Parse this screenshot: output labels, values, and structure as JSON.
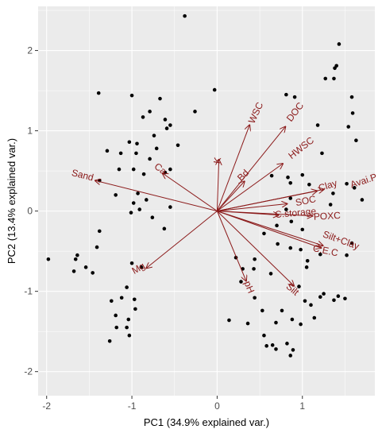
{
  "colors": {
    "panel_bg": "#ebebeb",
    "grid": "#ffffff",
    "point": "#000000",
    "vector": "#8b1a1a",
    "tick_text": "#4d4d4d",
    "axis_title": "#000000"
  },
  "chart_data": {
    "type": "scatter",
    "subtype": "pca-biplot",
    "xlabel": "PC1 (34.9% explained var.)",
    "ylabel": "PC2 (13.4% explained var.)",
    "xlim": [
      -2.1,
      1.85
    ],
    "ylim": [
      -2.3,
      2.55
    ],
    "xticks": [
      -2,
      -1,
      0,
      1
    ],
    "yticks": [
      -2,
      -1,
      0,
      1,
      2
    ],
    "grid": true,
    "points": [
      [
        -0.38,
        2.43
      ],
      [
        1.43,
        2.08
      ],
      [
        1.4,
        1.81
      ],
      [
        1.38,
        1.78
      ],
      [
        1.37,
        1.65
      ],
      [
        1.27,
        1.65
      ],
      [
        1.58,
        1.42
      ],
      [
        0.91,
        1.42
      ],
      [
        1.59,
        1.22
      ],
      [
        -0.03,
        1.51
      ],
      [
        -1.39,
        1.47
      ],
      [
        -1.0,
        1.44
      ],
      [
        -0.67,
        1.4
      ],
      [
        -0.79,
        1.24
      ],
      [
        -0.87,
        1.17
      ],
      [
        -0.61,
        1.14
      ],
      [
        -0.55,
        1.07
      ],
      [
        -0.59,
        1.03
      ],
      [
        -0.26,
        1.24
      ],
      [
        -0.74,
        0.94
      ],
      [
        -0.46,
        0.82
      ],
      [
        -1.03,
        0.86
      ],
      [
        -0.94,
        0.84
      ],
      [
        -1.13,
        0.72
      ],
      [
        -1.29,
        0.75
      ],
      [
        -0.71,
        0.78
      ],
      [
        -0.95,
        0.72
      ],
      [
        -0.79,
        0.65
      ],
      [
        -0.98,
        0.52
      ],
      [
        -0.55,
        0.52
      ],
      [
        -0.61,
        0.48
      ],
      [
        -0.86,
        0.46
      ],
      [
        -1.15,
        0.52
      ],
      [
        -1.38,
        0.38
      ],
      [
        -0.93,
        0.22
      ],
      [
        -1.19,
        0.2
      ],
      [
        -0.83,
        0.14
      ],
      [
        -0.98,
        0.1
      ],
      [
        -0.91,
        0.02
      ],
      [
        -1.01,
        -0.02
      ],
      [
        -0.55,
        0.05
      ],
      [
        -0.76,
        -0.08
      ],
      [
        -0.62,
        -0.22
      ],
      [
        -1.38,
        -0.25
      ],
      [
        -1.41,
        -0.45
      ],
      [
        -1.0,
        -0.65
      ],
      [
        -0.89,
        -0.7
      ],
      [
        -1.64,
        -0.55
      ],
      [
        -1.66,
        -0.6
      ],
      [
        -1.54,
        -0.7
      ],
      [
        -1.68,
        -0.75
      ],
      [
        -1.46,
        -0.77
      ],
      [
        -1.98,
        -0.6
      ],
      [
        -1.06,
        -0.95
      ],
      [
        -0.97,
        -1.1
      ],
      [
        -1.12,
        -1.08
      ],
      [
        -0.96,
        -1.22
      ],
      [
        -1.24,
        -1.12
      ],
      [
        -1.19,
        -1.3
      ],
      [
        -1.18,
        -1.45
      ],
      [
        -1.04,
        -1.35
      ],
      [
        -1.26,
        -1.62
      ],
      [
        -1.03,
        -1.55
      ],
      [
        -1.06,
        -1.45
      ],
      [
        0.81,
        1.45
      ],
      [
        1.18,
        1.07
      ],
      [
        1.54,
        1.05
      ],
      [
        1.63,
        0.88
      ],
      [
        1.23,
        0.72
      ],
      [
        1.0,
        0.45
      ],
      [
        0.83,
        0.42
      ],
      [
        0.86,
        0.35
      ],
      [
        1.08,
        0.33
      ],
      [
        1.52,
        0.34
      ],
      [
        1.61,
        0.29
      ],
      [
        1.36,
        0.22
      ],
      [
        1.33,
        0.08
      ],
      [
        1.7,
        0.14
      ],
      [
        0.86,
        0.16
      ],
      [
        0.81,
        0.02
      ],
      [
        0.64,
        0.44
      ],
      [
        0.7,
        -0.18
      ],
      [
        0.87,
        -0.13
      ],
      [
        1.0,
        -0.23
      ],
      [
        0.71,
        -0.41
      ],
      [
        0.86,
        -0.46
      ],
      [
        0.55,
        -0.28
      ],
      [
        1.06,
        -0.62
      ],
      [
        0.98,
        -0.48
      ],
      [
        1.58,
        -0.4
      ],
      [
        1.52,
        -0.55
      ],
      [
        1.21,
        -0.54
      ],
      [
        1.05,
        -0.7
      ],
      [
        0.63,
        -0.78
      ],
      [
        0.44,
        -0.6
      ],
      [
        0.3,
        -0.72
      ],
      [
        0.28,
        -0.88
      ],
      [
        0.22,
        -0.58
      ],
      [
        0.96,
        -0.94
      ],
      [
        1.21,
        -1.07
      ],
      [
        1.03,
        -1.12
      ],
      [
        1.14,
        -1.33
      ],
      [
        0.76,
        -1.24
      ],
      [
        0.88,
        -1.35
      ],
      [
        0.98,
        -1.41
      ],
      [
        0.69,
        -1.39
      ],
      [
        0.44,
        -1.08
      ],
      [
        0.53,
        -1.24
      ],
      [
        0.14,
        -1.36
      ],
      [
        0.65,
        -1.67
      ],
      [
        0.58,
        -1.68
      ],
      [
        0.69,
        -1.72
      ],
      [
        0.82,
        -1.65
      ],
      [
        0.89,
        -1.73
      ],
      [
        0.86,
        -1.8
      ],
      [
        0.55,
        -1.55
      ],
      [
        1.1,
        -1.17
      ],
      [
        1.37,
        -1.11
      ],
      [
        1.42,
        -1.06
      ],
      [
        1.5,
        -1.09
      ],
      [
        1.25,
        -1.03
      ],
      [
        0.43,
        -0.72
      ],
      [
        0.36,
        -1.4
      ]
    ],
    "vectors": [
      {
        "label": "WSC",
        "x": 0.38,
        "y": 1.07,
        "angle": -65,
        "lx": 0.46,
        "ly": 1.22
      },
      {
        "label": "DOC",
        "x": 0.8,
        "y": 1.05,
        "angle": -52,
        "lx": 0.92,
        "ly": 1.23
      },
      {
        "label": "HWSC",
        "x": 0.77,
        "y": 0.59,
        "angle": -38,
        "lx": 0.99,
        "ly": 0.78
      },
      {
        "label": "Bd",
        "x": 0.32,
        "y": 0.37,
        "angle": -45,
        "lx": 0.31,
        "ly": 0.44
      },
      {
        "label": "K",
        "x": 0.02,
        "y": 0.64,
        "angle": -80,
        "lx": 0.01,
        "ly": 0.63
      },
      {
        "label": "Clay",
        "x": 1.25,
        "y": 0.27,
        "angle": -18,
        "lx": 1.3,
        "ly": 0.31
      },
      {
        "label": "Avai.P",
        "x": 1.17,
        "y": 0.25,
        "angle": -18,
        "lx": 1.72,
        "ly": 0.37
      },
      {
        "label": "SOC",
        "x": 0.82,
        "y": 0.09,
        "angle": -12,
        "lx": 1.04,
        "ly": 0.12
      },
      {
        "label": "C.storage",
        "x": 0.72,
        "y": -0.05,
        "angle": -5,
        "lx": 0.92,
        "ly": -0.03
      },
      {
        "label": "POXC",
        "x": 1.12,
        "y": -0.06,
        "angle": -3,
        "lx": 1.29,
        "ly": -0.07
      },
      {
        "label": "Silt+Clay",
        "x": 1.24,
        "y": -0.43,
        "angle": 20,
        "lx": 1.45,
        "ly": -0.37
      },
      {
        "label": "C.E.C",
        "x": 1.22,
        "y": -0.46,
        "angle": 12,
        "lx": 1.27,
        "ly": -0.5
      },
      {
        "label": "Silt",
        "x": 0.9,
        "y": -0.93,
        "angle": 40,
        "lx": 0.88,
        "ly": -0.98
      },
      {
        "label": "pH",
        "x": 0.34,
        "y": -0.87,
        "angle": 68,
        "lx": 0.37,
        "ly": -0.95
      },
      {
        "label": "Mg",
        "x": -0.83,
        "y": -0.71,
        "angle": -30,
        "lx": -0.92,
        "ly": -0.72
      },
      {
        "label": "Sand",
        "x": -1.43,
        "y": 0.38,
        "angle": 14,
        "lx": -1.58,
        "ly": 0.44
      },
      {
        "label": "Ca",
        "x": -0.64,
        "y": 0.47,
        "angle": 38,
        "lx": -0.67,
        "ly": 0.52
      }
    ]
  }
}
